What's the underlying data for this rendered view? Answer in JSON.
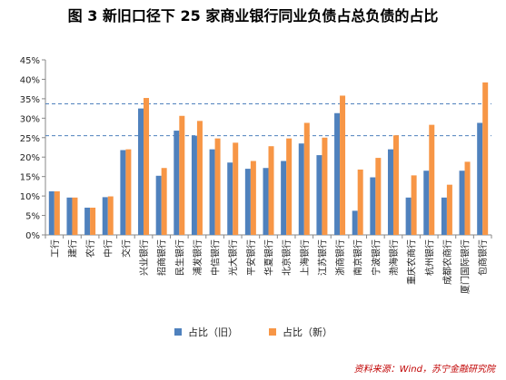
{
  "chart_data": {
    "type": "bar",
    "title": "图 3 新旧口径下 25 家商业银行同业负债占总负债的占比",
    "xlabel": "",
    "ylabel": "",
    "ylim": [
      0,
      45
    ],
    "yticks": [
      "0%",
      "5%",
      "10%",
      "15%",
      "20%",
      "25%",
      "30%",
      "35%",
      "40%",
      "45%"
    ],
    "ytick_values": [
      0,
      5,
      10,
      15,
      20,
      25,
      30,
      35,
      40,
      45
    ],
    "categories": [
      "工行",
      "建行",
      "农行",
      "中行",
      "交行",
      "兴业银行",
      "招商银行",
      "民生银行",
      "浦发银行",
      "中信银行",
      "光大银行",
      "平安银行",
      "华夏银行",
      "北京银行",
      "上海银行",
      "江苏银行",
      "浙商银行",
      "南京银行",
      "宁波银行",
      "渤海银行",
      "重庆农商行",
      "杭州银行",
      "成都农商行",
      "厦门国际银行",
      "包商银行"
    ],
    "series": [
      {
        "name": "占比（旧）",
        "color": "#4f81bd",
        "values": [
          11.2,
          9.6,
          7.0,
          9.7,
          21.8,
          32.5,
          15.2,
          26.8,
          25.5,
          22.0,
          18.6,
          17.0,
          17.2,
          19.0,
          23.5,
          20.5,
          31.3,
          6.2,
          14.8,
          22.0,
          9.6,
          16.5,
          9.6,
          16.5,
          28.8
        ]
      },
      {
        "name": "占比（新）",
        "color": "#f79646",
        "values": [
          11.2,
          9.6,
          7.0,
          9.9,
          22.0,
          35.2,
          17.2,
          30.6,
          29.3,
          24.8,
          23.7,
          19.0,
          22.8,
          24.8,
          28.8,
          25.0,
          35.8,
          16.8,
          19.8,
          25.6,
          15.3,
          28.3,
          12.9,
          18.8,
          39.2
        ]
      }
    ],
    "reference_lines": [
      25.5,
      33.7
    ],
    "grid": false,
    "legend_position": "bottom"
  },
  "source": "资料来源：Wind，苏宁金融研究院"
}
